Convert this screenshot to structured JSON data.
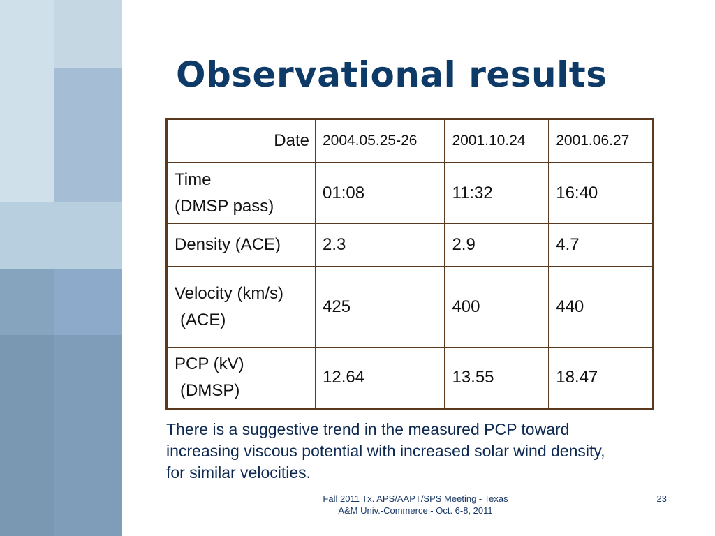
{
  "slide": {
    "title": "Observational results",
    "table": {
      "header": {
        "label": "Date",
        "columns": [
          "2004.05.25-26",
          "2001.10.24",
          "2001.06.27"
        ]
      },
      "rows": [
        {
          "label_lines": [
            "Time",
            "(DMSP pass)"
          ],
          "values": [
            "01:08",
            "11:32",
            "16:40"
          ]
        },
        {
          "label_lines": [
            "Density (ACE)"
          ],
          "values": [
            "2.3",
            "2.9",
            "4.7"
          ]
        },
        {
          "label_lines": [
            "Velocity (km/s)",
            "(ACE)"
          ],
          "values": [
            "425",
            "400",
            "440"
          ]
        },
        {
          "label_lines": [
            "PCP (kV)",
            "(DMSP)"
          ],
          "values": [
            "12.64",
            "13.55",
            "18.47"
          ]
        }
      ]
    },
    "note_lines": [
      "There is a suggestive trend in the measured PCP toward",
      "increasing viscous potential with increased solar wind density,",
      "for similar velocities."
    ],
    "footer_lines": [
      "Fall 2011 Tx. APS/AAPT/SPS Meeting - Texas",
      "A&M Univ.-Commerce - Oct. 6-8, 2011"
    ],
    "page_number": "23"
  }
}
